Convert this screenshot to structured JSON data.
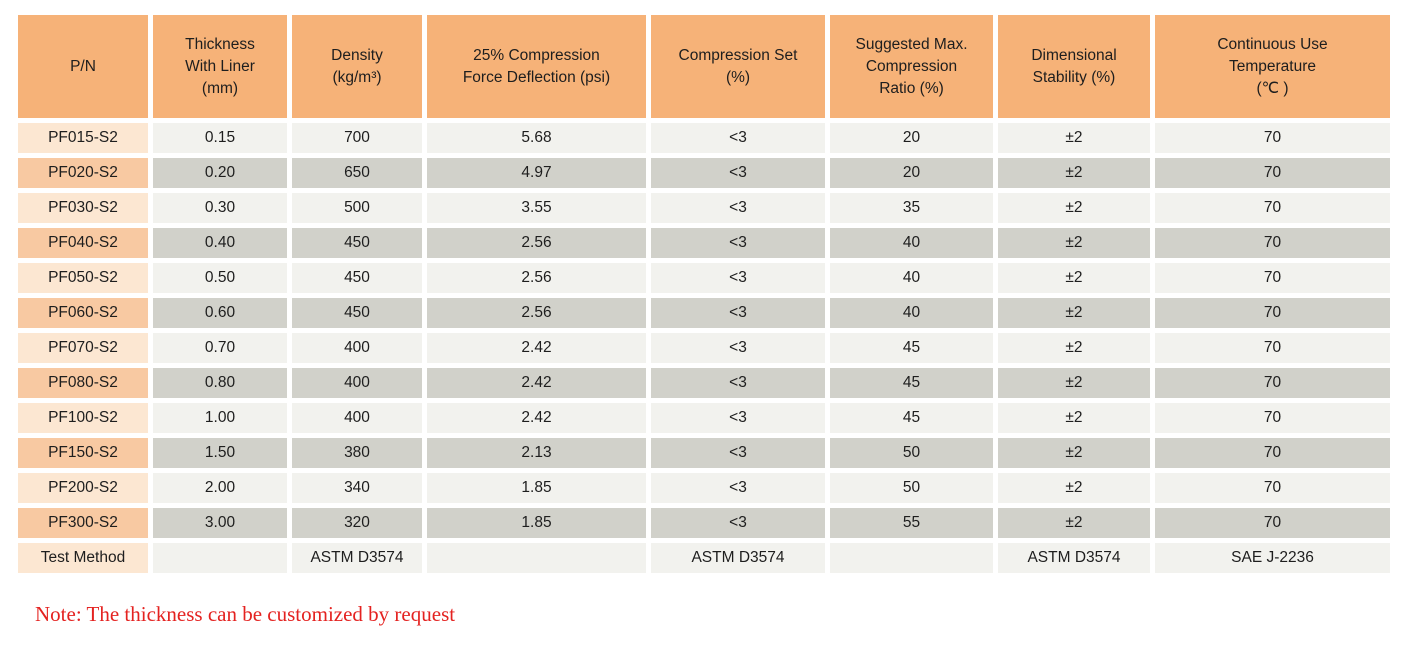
{
  "colors": {
    "header_bg": "#f6b278",
    "pn_odd_bg": "#fce7d2",
    "pn_even_bg": "#f8c9a2",
    "cell_odd_bg": "#f2f2ee",
    "cell_even_bg": "#d1d1ca",
    "note_red": "#e42220",
    "text": "#1e1e1e"
  },
  "table": {
    "columns": [
      {
        "key": "pn",
        "label": "P/N"
      },
      {
        "key": "thickness_with_liner",
        "label": "Thickness\nWith Liner\n(mm)"
      },
      {
        "key": "density",
        "label": "Density\n(kg/m³)"
      },
      {
        "key": "compression_force_deflection",
        "label": "25% Compression\nForce Deflection (psi)"
      },
      {
        "key": "compression_set",
        "label": "Compression Set\n(%)"
      },
      {
        "key": "max_compression_ratio",
        "label": "Suggested Max.\nCompression\nRatio (%)"
      },
      {
        "key": "dimensional_stability",
        "label": "Dimensional\nStability (%)"
      },
      {
        "key": "continuous_use_temperature",
        "label": "Continuous Use\nTemperature\n(℃ )"
      }
    ],
    "rows": [
      {
        "cells": [
          "PF015-S2",
          "0.15",
          "700",
          "5.68",
          "<3",
          "20",
          "±2",
          "70"
        ]
      },
      {
        "cells": [
          "PF020-S2",
          "0.20",
          "650",
          "4.97",
          "<3",
          "20",
          "±2",
          "70"
        ]
      },
      {
        "cells": [
          "PF030-S2",
          "0.30",
          "500",
          "3.55",
          "<3",
          "35",
          "±2",
          "70"
        ]
      },
      {
        "cells": [
          "PF040-S2",
          "0.40",
          "450",
          "2.56",
          "<3",
          "40",
          "±2",
          "70"
        ]
      },
      {
        "cells": [
          "PF050-S2",
          "0.50",
          "450",
          "2.56",
          "<3",
          "40",
          "±2",
          "70"
        ]
      },
      {
        "cells": [
          "PF060-S2",
          "0.60",
          "450",
          "2.56",
          "<3",
          "40",
          "±2",
          "70"
        ]
      },
      {
        "cells": [
          "PF070-S2",
          "0.70",
          "400",
          "2.42",
          "<3",
          "45",
          "±2",
          "70"
        ]
      },
      {
        "cells": [
          "PF080-S2",
          "0.80",
          "400",
          "2.42",
          "<3",
          "45",
          "±2",
          "70"
        ]
      },
      {
        "cells": [
          "PF100-S2",
          "1.00",
          "400",
          "2.42",
          "<3",
          "45",
          "±2",
          "70"
        ]
      },
      {
        "cells": [
          "PF150-S2",
          "1.50",
          "380",
          "2.13",
          "<3",
          "50",
          "±2",
          "70"
        ]
      },
      {
        "cells": [
          "PF200-S2",
          "2.00",
          "340",
          "1.85",
          "<3",
          "50",
          "±2",
          "70"
        ]
      },
      {
        "cells": [
          "PF300-S2",
          "3.00",
          "320",
          "1.85",
          "<3",
          "55",
          "±2",
          "70"
        ]
      },
      {
        "cells": [
          "Test Method",
          "",
          "ASTM D3574",
          "",
          "ASTM D3574",
          "",
          "ASTM D3574",
          "SAE J-2236"
        ]
      }
    ]
  },
  "note": "Note: The thickness can be customized by request"
}
